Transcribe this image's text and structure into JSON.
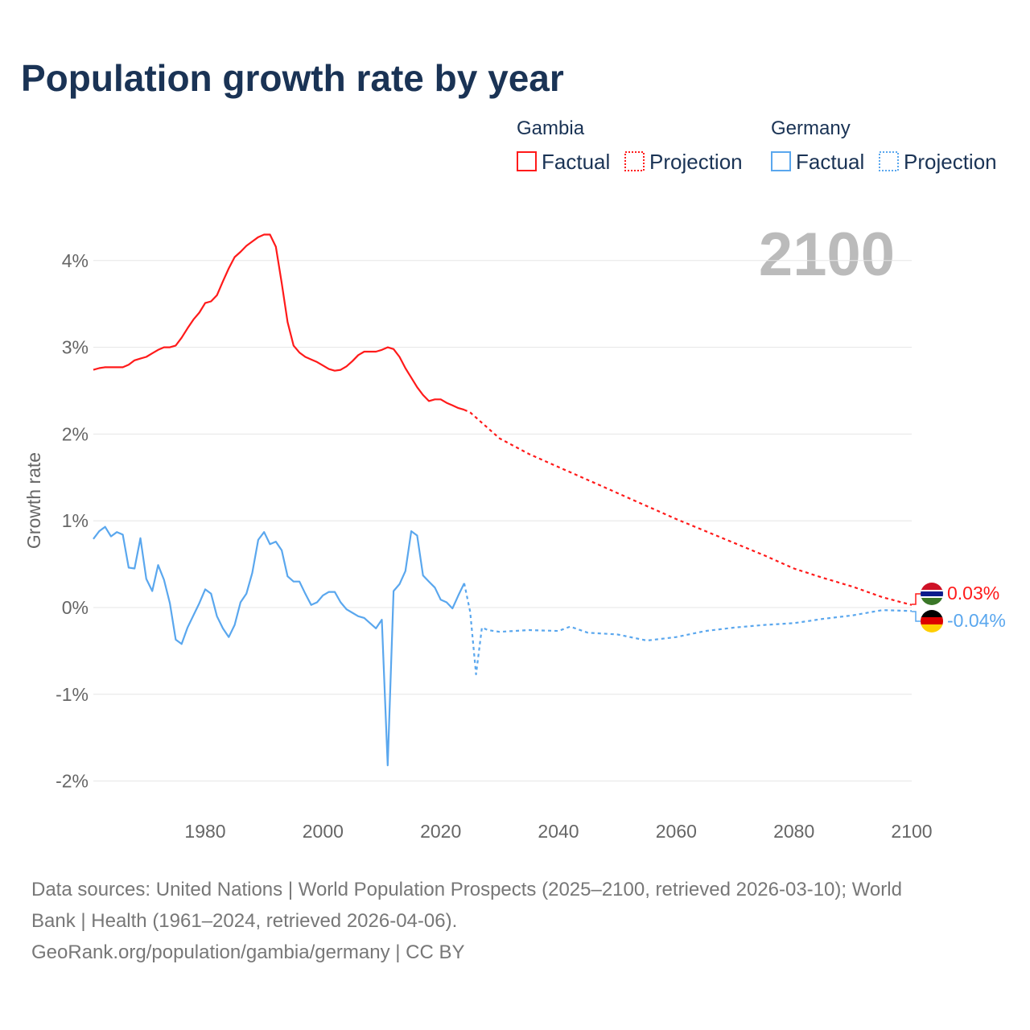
{
  "title": "Population growth rate by year",
  "legend": {
    "groups": [
      {
        "name": "Gambia",
        "factual": "Factual",
        "projection": "Projection",
        "color": "#ff1a1a"
      },
      {
        "name": "Germany",
        "factual": "Factual",
        "projection": "Projection",
        "color": "#5aa7ee"
      }
    ]
  },
  "current_year": "2100",
  "footer": {
    "line1": "Data sources: United Nations | World Population Prospects (2025–2100, retrieved 2026-03-10); World",
    "line2": "Bank | Health (1961–2024, retrieved 2026-04-06).",
    "line3": "GeoRank.org/population/gambia/germany | CC BY"
  },
  "chart_data": {
    "type": "line",
    "title": "Population growth rate by year",
    "xlabel": "",
    "ylabel": "Growth rate",
    "xlim": [
      1961,
      2100
    ],
    "ylim": [
      -2.3,
      4.5
    ],
    "x_ticks": [
      1980,
      2000,
      2020,
      2040,
      2060,
      2080,
      2100
    ],
    "x_tick_labels": [
      "1980",
      "2000",
      "2020",
      "2040",
      "2060",
      "2080",
      "2100"
    ],
    "y_ticks": [
      -2,
      -1,
      0,
      1,
      2,
      3,
      4
    ],
    "y_tick_labels": [
      "-2%",
      "-1%",
      "0%",
      "1%",
      "2%",
      "3%",
      "4%"
    ],
    "grid": true,
    "legend_position": "top-right",
    "series": [
      {
        "name": "Gambia",
        "kind": "Factual",
        "color": "#ff1a1a",
        "x": [
          1961,
          1962,
          1963,
          1964,
          1965,
          1966,
          1967,
          1968,
          1969,
          1970,
          1971,
          1972,
          1973,
          1974,
          1975,
          1976,
          1977,
          1978,
          1979,
          1980,
          1981,
          1982,
          1983,
          1984,
          1985,
          1986,
          1987,
          1988,
          1989,
          1990,
          1991,
          1992,
          1993,
          1994,
          1995,
          1996,
          1997,
          1998,
          1999,
          2000,
          2001,
          2002,
          2003,
          2004,
          2005,
          2006,
          2007,
          2008,
          2009,
          2010,
          2011,
          2012,
          2013,
          2014,
          2015,
          2016,
          2017,
          2018,
          2019,
          2020,
          2021,
          2022,
          2023,
          2024
        ],
        "values": [
          2.74,
          2.76,
          2.77,
          2.77,
          2.77,
          2.77,
          2.8,
          2.85,
          2.87,
          2.89,
          2.93,
          2.97,
          3.0,
          3.0,
          3.02,
          3.11,
          3.22,
          3.32,
          3.4,
          3.51,
          3.53,
          3.6,
          3.76,
          3.91,
          4.04,
          4.1,
          4.17,
          4.22,
          4.27,
          4.3,
          4.3,
          4.16,
          3.74,
          3.29,
          3.02,
          2.94,
          2.89,
          2.86,
          2.83,
          2.79,
          2.75,
          2.73,
          2.74,
          2.78,
          2.84,
          2.91,
          2.95,
          2.95,
          2.95,
          2.97,
          3.0,
          2.98,
          2.89,
          2.76,
          2.65,
          2.54,
          2.45,
          2.38,
          2.4,
          2.4,
          2.36,
          2.33,
          2.3,
          2.28
        ]
      },
      {
        "name": "Gambia",
        "kind": "Projection",
        "color": "#ff1a1a",
        "x": [
          2024,
          2025,
          2030,
          2035,
          2040,
          2045,
          2050,
          2055,
          2060,
          2065,
          2070,
          2075,
          2080,
          2085,
          2090,
          2095,
          2100
        ],
        "values": [
          2.28,
          2.25,
          1.95,
          1.77,
          1.62,
          1.47,
          1.32,
          1.17,
          1.02,
          0.88,
          0.74,
          0.6,
          0.45,
          0.34,
          0.24,
          0.12,
          0.03
        ]
      },
      {
        "name": "Germany",
        "kind": "Factual",
        "color": "#5aa7ee",
        "x": [
          1961,
          1962,
          1963,
          1964,
          1965,
          1966,
          1967,
          1968,
          1969,
          1970,
          1971,
          1972,
          1973,
          1974,
          1975,
          1976,
          1977,
          1978,
          1979,
          1980,
          1981,
          1982,
          1983,
          1984,
          1985,
          1986,
          1987,
          1988,
          1989,
          1990,
          1991,
          1992,
          1993,
          1994,
          1995,
          1996,
          1997,
          1998,
          1999,
          2000,
          2001,
          2002,
          2003,
          2004,
          2005,
          2006,
          2007,
          2008,
          2009,
          2010,
          2011,
          2012,
          2013,
          2014,
          2015,
          2016,
          2017,
          2018,
          2019,
          2020,
          2021,
          2022,
          2023,
          2024
        ],
        "values": [
          0.79,
          0.88,
          0.93,
          0.82,
          0.87,
          0.84,
          0.46,
          0.45,
          0.8,
          0.33,
          0.19,
          0.49,
          0.32,
          0.05,
          -0.37,
          -0.42,
          -0.23,
          -0.09,
          0.05,
          0.21,
          0.16,
          -0.1,
          -0.24,
          -0.34,
          -0.2,
          0.06,
          0.16,
          0.4,
          0.78,
          0.87,
          0.73,
          0.76,
          0.66,
          0.36,
          0.3,
          0.3,
          0.16,
          0.03,
          0.06,
          0.14,
          0.18,
          0.18,
          0.06,
          -0.02,
          -0.06,
          -0.1,
          -0.12,
          -0.18,
          -0.24,
          -0.14,
          -1.82,
          0.19,
          0.27,
          0.42,
          0.88,
          0.83,
          0.37,
          0.3,
          0.23,
          0.09,
          0.06,
          -0.01,
          0.14,
          0.28
        ]
      },
      {
        "name": "Germany",
        "kind": "Projection",
        "color": "#5aa7ee",
        "x": [
          2024,
          2025,
          2026,
          2027,
          2028,
          2030,
          2035,
          2040,
          2042,
          2045,
          2050,
          2055,
          2060,
          2065,
          2070,
          2075,
          2080,
          2085,
          2090,
          2095,
          2100
        ],
        "values": [
          0.28,
          -0.05,
          -0.77,
          -0.23,
          -0.26,
          -0.28,
          -0.26,
          -0.27,
          -0.22,
          -0.29,
          -0.31,
          -0.38,
          -0.34,
          -0.27,
          -0.23,
          -0.2,
          -0.18,
          -0.13,
          -0.09,
          -0.03,
          -0.04
        ]
      }
    ],
    "end_labels": [
      {
        "country": "Gambia",
        "value_label": "0.03%"
      },
      {
        "country": "Germany",
        "value_label": "-0.04%"
      }
    ]
  }
}
